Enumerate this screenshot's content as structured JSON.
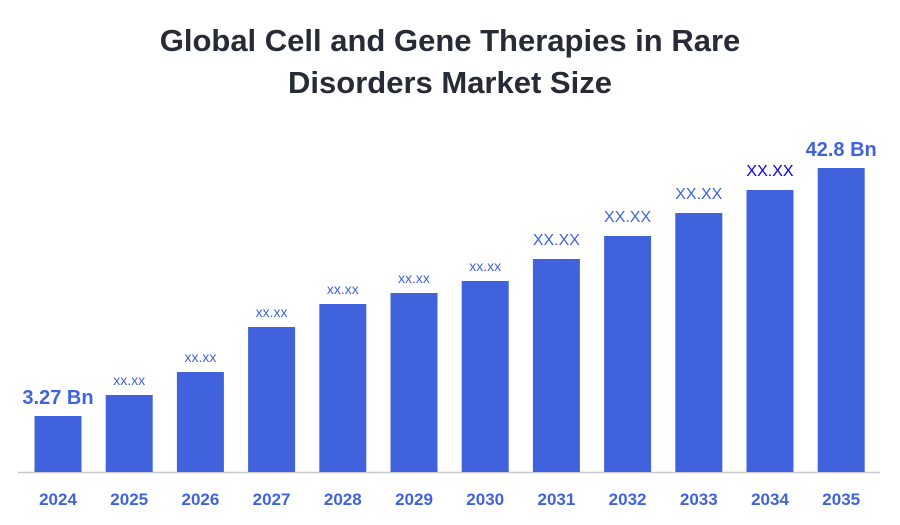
{
  "chart_data": {
    "type": "bar",
    "title_lines": [
      "Global Cell and Gene Therapies in Rare",
      "Disorders Market Size"
    ],
    "categories": [
      "2024",
      "2025",
      "2026",
      "2027",
      "2028",
      "2029",
      "2030",
      "2031",
      "2032",
      "2033",
      "2034",
      "2035"
    ],
    "values": [
      3.27,
      null,
      null,
      null,
      null,
      null,
      null,
      null,
      null,
      null,
      null,
      42.8
    ],
    "data_labels": [
      "3.27 Bn",
      "xx.xx",
      "xx.xx",
      "xx.xx",
      "xx.xx",
      "xx.xx",
      "xx.xx",
      "XX.XX",
      "XX.XX",
      "XX.XX",
      "XX.XX",
      "42.8 Bn"
    ],
    "unit": "Bn",
    "xlabel": "",
    "ylabel": "",
    "grid": false,
    "legend": "none",
    "colors": {
      "bar": "#4063DD",
      "label": "#4063DD",
      "label_2034": "#0000EE",
      "axis_text": "#4063DD",
      "title": "#262B36"
    }
  }
}
